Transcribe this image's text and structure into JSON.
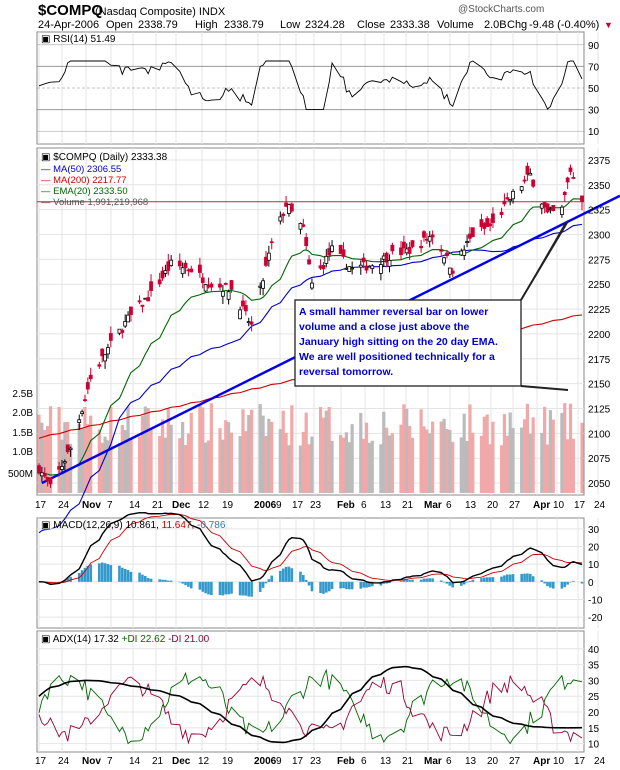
{
  "header": {
    "symbol": "$COMPQ",
    "name": "(Nasdaq Composite) INDX",
    "date": "24-Apr-2006",
    "open_label": "Open",
    "open": "2338.79",
    "high_label": "High",
    "high": "2338.79",
    "low_label": "Low",
    "low": "2324.28",
    "close_label": "Close",
    "close": "2333.38",
    "volume_label": "Volume",
    "volume": "2.0B",
    "chg_label": "Chg",
    "chg": "-9.48 (-0.40%)",
    "chg_arrow": "▼",
    "watermark": "@StockCharts.com"
  },
  "colors": {
    "up": "#000000",
    "down": "#cc0033",
    "ma50": "#0000cc",
    "ma200": "#cc0000",
    "ema20": "#006600",
    "trend": "#0000ee",
    "resistance": "#aa3344",
    "vol_up": "#bbbbbb",
    "vol_down": "#f0a8a8",
    "macd": "#000000",
    "signal": "#cc0000",
    "hist": "#3399cc",
    "adx": "#000000",
    "pdi": "#006600",
    "mdi": "#990033",
    "annotation_text": "#0000cc"
  },
  "rsi": {
    "label": "RSI(14) 51.49",
    "ticks": [
      "90",
      "70",
      "50",
      "30",
      "10"
    ]
  },
  "price": {
    "title": "$COMPQ (Daily) 2333.38",
    "legend": [
      {
        "text": "MA(50) 2306.55",
        "color": "#0000cc"
      },
      {
        "text": "MA(200) 2217.77",
        "color": "#cc0000"
      },
      {
        "text": "EMA(20) 2333.50",
        "color": "#006600"
      },
      {
        "text": "Volume 1,991,219,968",
        "color": "#555555"
      }
    ],
    "ticks": [
      "2375",
      "2350",
      "2325",
      "2300",
      "2275",
      "2250",
      "2225",
      "2200",
      "2175",
      "2150",
      "2125",
      "2100",
      "2075",
      "2050"
    ],
    "volume_ticks": [
      "2.5B",
      "2.0B",
      "1.5B",
      "1.0B",
      "500M"
    ],
    "annotation": [
      "A small hammer reversal bar on lower",
      "volume and a close just above the",
      "January high sitting on the 20 day EMA.",
      "We are well positioned technically for a",
      "reversal tomorrow."
    ]
  },
  "x_axis": {
    "labels": [
      "17",
      "24",
      "Nov",
      "7",
      "14",
      "21",
      "Dec",
      "12",
      "19",
      "2006",
      "9",
      "17",
      "23",
      "Feb",
      "6",
      "13",
      "21",
      "Mar",
      "6",
      "13",
      "20",
      "27",
      "Apr",
      "10",
      "17",
      "24"
    ],
    "bold": [
      "Nov",
      "Dec",
      "2006",
      "Feb",
      "Mar",
      "Apr"
    ]
  },
  "macd": {
    "label_main": "MACD(12,26,9) 10.861,",
    "label_signal": "11.647,",
    "label_hist": "-0.786",
    "ticks": [
      "30",
      "20",
      "10",
      "0",
      "-10",
      "-20"
    ]
  },
  "adx": {
    "label_main": "ADX(14) 17.32",
    "label_pdi": "+DI 22.62",
    "label_mdi": "-DI 21.00",
    "ticks": [
      "40",
      "35",
      "30",
      "25",
      "20",
      "15",
      "10"
    ]
  },
  "chart_data": {
    "type": "line",
    "title": "$COMPQ (Daily) 2333.38",
    "x_range": [
      "2005-10-17",
      "2006-04-24"
    ],
    "price_ylim": [
      2040,
      2385
    ],
    "volume_ylim": [
      0,
      3000000000
    ],
    "price_anchors": [
      {
        "date": "2005-10-17",
        "close": 2065
      },
      {
        "date": "2005-10-21",
        "close": 2045
      },
      {
        "date": "2005-10-28",
        "close": 2085
      },
      {
        "date": "2005-11-04",
        "close": 2155
      },
      {
        "date": "2005-11-10",
        "close": 2185
      },
      {
        "date": "2005-11-17",
        "close": 2215
      },
      {
        "date": "2005-11-25",
        "close": 2240
      },
      {
        "date": "2005-12-02",
        "close": 2270
      },
      {
        "date": "2005-12-09",
        "close": 2265
      },
      {
        "date": "2005-12-16",
        "close": 2250
      },
      {
        "date": "2005-12-23",
        "close": 2245
      },
      {
        "date": "2005-12-30",
        "close": 2208
      },
      {
        "date": "2006-01-06",
        "close": 2290
      },
      {
        "date": "2006-01-11",
        "close": 2330
      },
      {
        "date": "2006-01-17",
        "close": 2305
      },
      {
        "date": "2006-01-20",
        "close": 2250
      },
      {
        "date": "2006-01-27",
        "close": 2285
      },
      {
        "date": "2006-02-03",
        "close": 2265
      },
      {
        "date": "2006-02-10",
        "close": 2270
      },
      {
        "date": "2006-02-17",
        "close": 2280
      },
      {
        "date": "2006-02-24",
        "close": 2285
      },
      {
        "date": "2006-03-03",
        "close": 2300
      },
      {
        "date": "2006-03-10",
        "close": 2265
      },
      {
        "date": "2006-03-17",
        "close": 2300
      },
      {
        "date": "2006-03-24",
        "close": 2310
      },
      {
        "date": "2006-03-31",
        "close": 2340
      },
      {
        "date": "2006-04-06",
        "close": 2360
      },
      {
        "date": "2006-04-12",
        "close": 2320
      },
      {
        "date": "2006-04-17",
        "close": 2325
      },
      {
        "date": "2006-04-20",
        "close": 2365
      },
      {
        "date": "2006-04-24",
        "close": 2333
      }
    ],
    "resistance": 2333,
    "trendline": [
      {
        "date": "2005-10-18",
        "value": 2050
      },
      {
        "date": "2006-04-24",
        "value": 2320
      }
    ],
    "rsi_ylim": [
      0,
      100
    ],
    "macd_ylim": [
      -25,
      35
    ],
    "adx_ylim": [
      8,
      45
    ]
  }
}
